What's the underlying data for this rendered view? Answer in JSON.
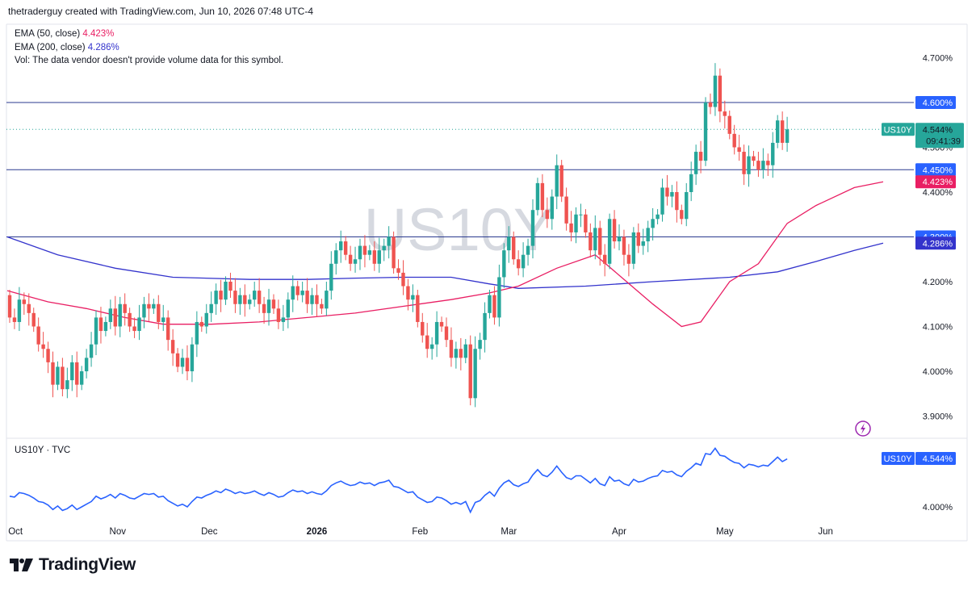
{
  "header": {
    "attribution": "thetraderguy created with TradingView.com, Jun 10, 2026 07:48 UTC-4"
  },
  "legend": {
    "ema50_label": "EMA (50, close)",
    "ema50_value": "4.423%",
    "ema200_label": "EMA (200, close)",
    "ema200_value": "4.286%",
    "vol_note": "Vol: The data vendor doesn't provide volume data for this symbol."
  },
  "watermark": "US10Y",
  "symbol_tag": {
    "name": "US10Y",
    "price": "4.544%",
    "countdown": "09:41:39"
  },
  "lower_pane": {
    "title": "US10Y · TVC",
    "symbol": "US10Y",
    "price": "4.544%",
    "tick": "4.000%"
  },
  "brand": "TradingView",
  "colors": {
    "up": "#26a69a",
    "down": "#ef5350",
    "ema50": "#e91e63",
    "ema200": "#3333cc",
    "hline": "#2a3a8f",
    "line": "#2962ff"
  },
  "chart_data": {
    "type": "candlestick",
    "ylim": [
      3.86,
      4.74
    ],
    "y_ticks": [
      "4.700%",
      "4.500%",
      "4.400%",
      "4.200%",
      "4.100%",
      "4.000%",
      "3.900%"
    ],
    "x_ticks": [
      "Oct",
      "Nov",
      "Dec",
      "2026",
      "Feb",
      "Mar",
      "Apr",
      "May",
      "Jun"
    ],
    "horizontal_levels": [
      "4.600%",
      "4.450%",
      "4.300%"
    ],
    "price_labels": {
      "ema50": "4.423%",
      "ema200": "4.286%"
    },
    "close_series_start": 4.17,
    "closes": [
      4.12,
      4.11,
      4.16,
      4.15,
      4.13,
      4.1,
      4.06,
      4.05,
      4.02,
      3.97,
      4.01,
      3.96,
      3.98,
      4.02,
      3.97,
      4.0,
      4.03,
      4.06,
      4.12,
      4.09,
      4.11,
      4.14,
      4.1,
      4.15,
      4.13,
      4.1,
      4.09,
      4.12,
      4.15,
      4.14,
      4.15,
      4.11,
      4.12,
      4.07,
      4.04,
      4.01,
      4.03,
      4.0,
      4.06,
      4.11,
      4.1,
      4.13,
      4.15,
      4.18,
      4.16,
      4.2,
      4.18,
      4.15,
      4.17,
      4.15,
      4.16,
      4.18,
      4.15,
      4.13,
      4.16,
      4.14,
      4.11,
      4.12,
      4.16,
      4.19,
      4.17,
      4.18,
      4.15,
      4.17,
      4.15,
      4.14,
      4.18,
      4.24,
      4.27,
      4.29,
      4.26,
      4.24,
      4.25,
      4.28,
      4.26,
      4.27,
      4.24,
      4.27,
      4.28,
      4.3,
      4.23,
      4.22,
      4.19,
      4.16,
      4.17,
      4.11,
      4.08,
      4.05,
      4.06,
      4.11,
      4.1,
      4.07,
      4.03,
      4.05,
      4.03,
      4.06,
      3.94,
      4.05,
      4.07,
      4.13,
      4.17,
      4.12,
      4.21,
      4.27,
      4.3,
      4.25,
      4.23,
      4.26,
      4.28,
      4.36,
      4.42,
      4.36,
      4.34,
      4.39,
      4.46,
      4.39,
      4.33,
      4.31,
      4.35,
      4.35,
      4.31,
      4.27,
      4.32,
      4.26,
      4.24,
      4.34,
      4.29,
      4.3,
      4.26,
      4.24,
      4.31,
      4.28,
      4.29,
      4.32,
      4.34,
      4.35,
      4.41,
      4.39,
      4.4,
      4.36,
      4.34,
      4.4,
      4.44,
      4.49,
      4.47,
      4.6,
      4.59,
      4.66,
      4.58,
      4.57,
      4.53,
      4.5,
      4.49,
      4.44,
      4.48,
      4.47,
      4.45,
      4.47,
      4.46,
      4.51,
      4.56,
      4.51,
      4.54
    ],
    "ema50": [
      4.18,
      4.155,
      4.14,
      4.12,
      4.105,
      4.105,
      4.11,
      4.12,
      4.13,
      4.145,
      4.16,
      4.175,
      4.19,
      4.23,
      4.26,
      4.205,
      4.15,
      4.1,
      4.11,
      4.2,
      4.24,
      4.33,
      4.37,
      4.41,
      4.423
    ],
    "ema50_dates": [
      -0.5,
      8,
      16,
      24,
      32,
      42,
      52,
      62,
      72,
      82,
      92,
      100,
      106,
      114,
      122,
      128,
      134,
      140,
      144,
      150,
      156,
      162,
      168,
      176,
      182
    ],
    "ema200": [
      4.3,
      4.26,
      4.23,
      4.21,
      4.205,
      4.205,
      4.208,
      4.21,
      4.21,
      4.195,
      4.185,
      4.19,
      4.2,
      4.21,
      4.222,
      4.245,
      4.27,
      4.286
    ],
    "ema200_dates": [
      -0.5,
      10,
      22,
      34,
      50,
      62,
      72,
      82,
      92,
      100,
      106,
      120,
      134,
      150,
      160,
      168,
      176,
      182
    ],
    "series": [
      {
        "name": "US10Y",
        "last": "4.544%"
      }
    ]
  }
}
